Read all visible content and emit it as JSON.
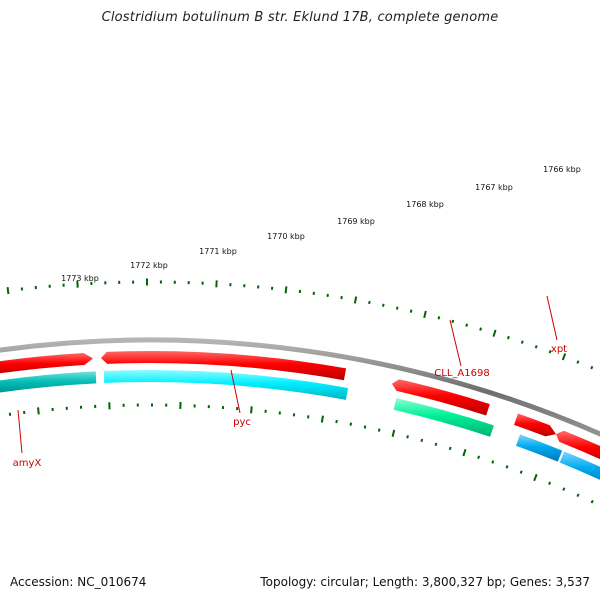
{
  "title": "Clostridium botulinum B str. Eklund 17B, complete genome",
  "footer": {
    "accession": "Accession: NC_010674",
    "summary": "Topology: circular; Length: 3,800,327 bp; Genes: 3,537"
  },
  "scale_labels": [
    "1766 kbp",
    "1767 kbp",
    "1768 kbp",
    "1769 kbp",
    "1770 kbp",
    "1771 kbp",
    "1772 kbp",
    "1773 kbp"
  ],
  "genes": [
    {
      "label": "amyX",
      "strand": "forward"
    },
    {
      "label": "pyc",
      "strand": "forward"
    },
    {
      "label": "CLL_A1698",
      "strand": "forward"
    },
    {
      "label": "xpt",
      "strand": "forward"
    }
  ],
  "colors": {
    "backbone": "#7a7a7a",
    "forward_cds": "#ee0000",
    "gene_pyc": "#00e5ee",
    "gene_amyX": "#00b8b0",
    "gene_cll": "#00ee99",
    "gene_xpt": "#00aaee",
    "ticks": "#006600",
    "label": "#cc0000"
  }
}
